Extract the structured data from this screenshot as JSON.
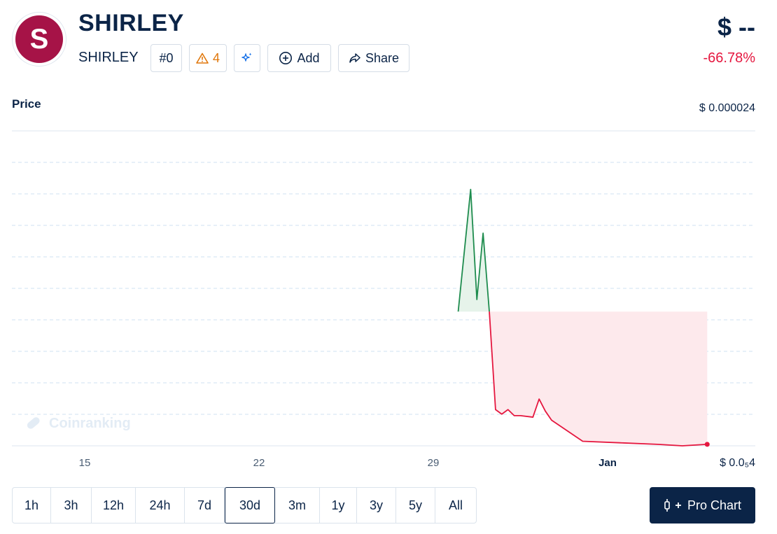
{
  "coin": {
    "logo_letter": "S",
    "name": "SHIRLEY",
    "symbol": "SHIRLEY",
    "rank": "#0",
    "warnings": "4",
    "price": "$ --",
    "change": "-66.78%"
  },
  "actions": {
    "add_label": "Add",
    "share_label": "Share"
  },
  "chart": {
    "label": "Price",
    "top_value": "$ 0.000024",
    "bottom_value": "$ 0.0₅4",
    "watermark": "Coinranking"
  },
  "chart_data": {
    "type": "area",
    "title": "Price",
    "x_ticks": [
      "15",
      "22",
      "29",
      "Jan"
    ],
    "y_top_label": "$ 0.000024",
    "y_bottom_label": "$ 0.0₅4",
    "ylim": [
      4e-06,
      2.4e-05
    ],
    "grid": "horizontal dashed",
    "points": [
      {
        "x": "Dec 30 00:00",
        "y": 1.29e-05
      },
      {
        "x": "Dec 30 12:00",
        "y": 2.1e-05
      },
      {
        "x": "Dec 30 18:00",
        "y": 1.37e-05
      },
      {
        "x": "Dec 31 00:00",
        "y": 1.81e-05
      },
      {
        "x": "Dec 31 06:00",
        "y": 1.29e-05
      },
      {
        "x": "Dec 31 12:00",
        "y": 6.4e-06
      },
      {
        "x": "Dec 31 18:00",
        "y": 6.1e-06
      },
      {
        "x": "Jan 1 00:00",
        "y": 6.4e-06
      },
      {
        "x": "Jan 1 06:00",
        "y": 6e-06
      },
      {
        "x": "Jan 1 12:00",
        "y": 6e-06
      },
      {
        "x": "Jan 2 00:00",
        "y": 5.9e-06
      },
      {
        "x": "Jan 2 06:00",
        "y": 7.1e-06
      },
      {
        "x": "Jan 2 12:00",
        "y": 6.3e-06
      },
      {
        "x": "Jan 2 18:00",
        "y": 5.7e-06
      },
      {
        "x": "Jan 4 00:00",
        "y": 4.3e-06
      },
      {
        "x": "Jan 5 12:00",
        "y": 4.2e-06
      },
      {
        "x": "Jan 7 00:00",
        "y": 4.1e-06
      },
      {
        "x": "Jan 8 00:00",
        "y": 4e-06
      },
      {
        "x": "Jan 9 00:00",
        "y": 4.1e-06
      }
    ],
    "baseline": 1.29e-05,
    "colors": {
      "up": "#1e8c4e",
      "down": "#e5173f",
      "up_fill": "#e6f3ea",
      "down_fill": "#fde9ec"
    }
  },
  "ranges": {
    "items": [
      "1h",
      "3h",
      "12h",
      "24h",
      "7d",
      "30d",
      "3m",
      "1y",
      "3y",
      "5y",
      "All"
    ],
    "active": "30d"
  },
  "pro_chart_label": "Pro Chart",
  "colors": {
    "primary": "#0b2447",
    "negative": "#e5173f",
    "warning": "#e0770b",
    "logo_bg": "#a61347"
  }
}
